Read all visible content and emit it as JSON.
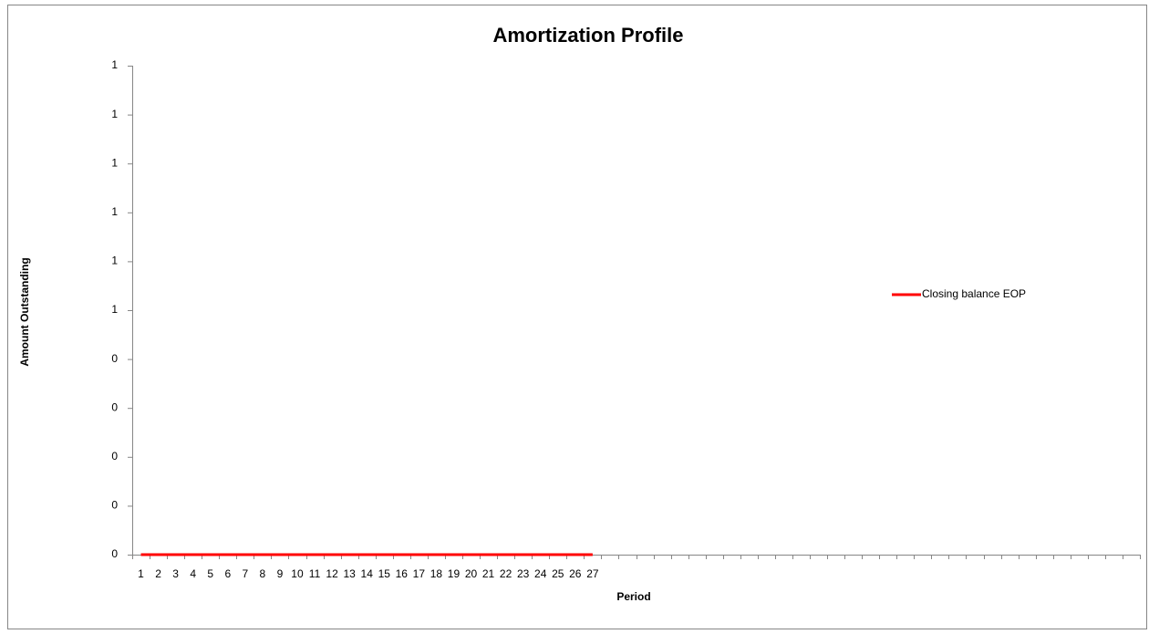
{
  "chart_data": {
    "type": "line",
    "title": "Amortization Profile",
    "x_label": "Period",
    "y_label": "Amount Outstanding",
    "categories": [
      1,
      2,
      3,
      4,
      5,
      6,
      7,
      8,
      9,
      10,
      11,
      12,
      13,
      14,
      15,
      16,
      17,
      18,
      19,
      20,
      21,
      22,
      23,
      24,
      25,
      26,
      27,
      null,
      null,
      null,
      null,
      null,
      null,
      null,
      null,
      null,
      null,
      null,
      null,
      null,
      null,
      null,
      null,
      null,
      null,
      null,
      null,
      null,
      null,
      null,
      null,
      null,
      null,
      null,
      null,
      null,
      null,
      null
    ],
    "series": [
      {
        "name": "Closing balance EOP",
        "color": "#ff0000",
        "values": [
          0,
          0,
          0,
          0,
          0,
          0,
          0,
          0,
          0,
          0,
          0,
          0,
          0,
          0,
          0,
          0,
          0,
          0,
          0,
          0,
          0,
          0,
          0,
          0,
          0,
          0,
          0,
          null,
          null,
          null,
          null,
          null,
          null,
          null,
          null,
          null,
          null,
          null,
          null,
          null,
          null,
          null,
          null,
          null,
          null,
          null,
          null,
          null,
          null,
          null,
          null,
          null,
          null,
          null,
          null,
          null,
          null,
          null
        ]
      }
    ],
    "ylim": [
      0,
      1
    ],
    "yticks": [
      {
        "value": 0,
        "label": "0"
      },
      {
        "value": 0.1,
        "label": "0"
      },
      {
        "value": 0.2,
        "label": "0"
      },
      {
        "value": 0.3,
        "label": "0"
      },
      {
        "value": 0.4,
        "label": "0"
      },
      {
        "value": 0.5,
        "label": "1"
      },
      {
        "value": 0.6,
        "label": "1"
      },
      {
        "value": 0.7,
        "label": "1"
      },
      {
        "value": 0.8,
        "label": "1"
      },
      {
        "value": 0.9,
        "label": "1"
      },
      {
        "value": 1,
        "label": "1"
      }
    ],
    "grid": false,
    "legend": "right"
  }
}
